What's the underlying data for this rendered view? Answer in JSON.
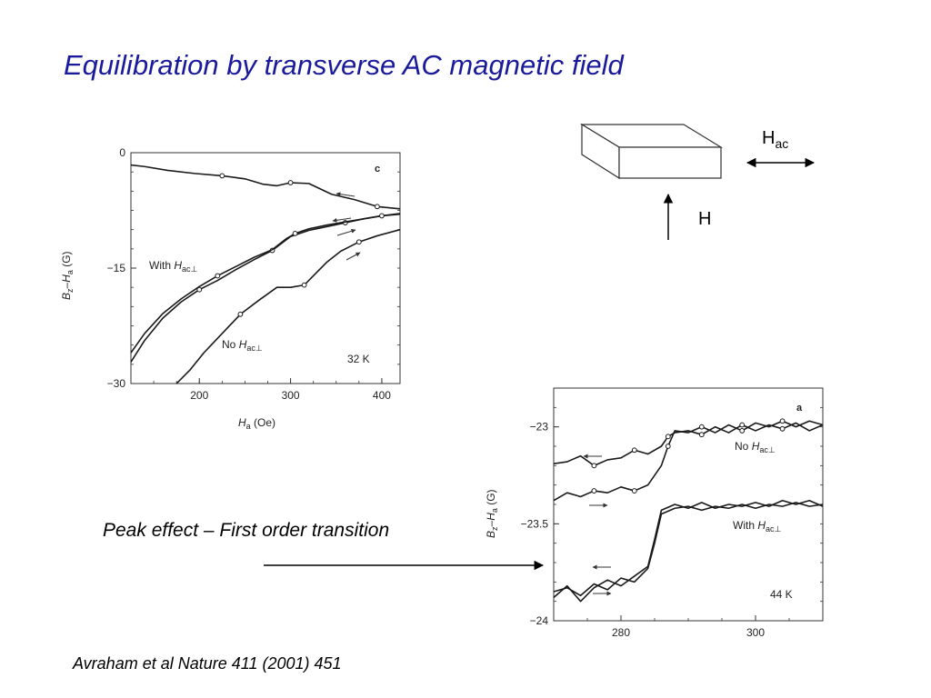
{
  "slide": {
    "title": "Equilibration by transverse AC magnetic field",
    "caption": "Peak effect – First order transition",
    "reference": "Avraham et al Nature 411 (2001) 451"
  },
  "schematic": {
    "hac_main": "H",
    "hac_sub": "ac",
    "h_label": "H"
  },
  "chart_data": [
    {
      "type": "line",
      "panel_label": "c",
      "temperature_label": "32 K",
      "xlabel_main": "H",
      "xlabel_sub": "a",
      "xlabel_unit": " (Oe)",
      "ylabel": "Bz–Ha (G)",
      "ylabel_parts": {
        "b": "B",
        "b_sub": "z",
        "dash": "–",
        "h": "H",
        "h_sub": "a",
        "unit": " (G)"
      },
      "xlim": [
        125,
        420
      ],
      "ylim": [
        -30,
        0
      ],
      "xticks": [
        "200",
        "300",
        "400"
      ],
      "yticks": [
        "0",
        "−15",
        "−30"
      ],
      "annotations": {
        "with_prefix": "With ",
        "no_prefix": "No ",
        "h": "H",
        "h_sub": "ac⊥"
      },
      "series": [
        {
          "x": [
            125,
            140,
            165,
            195,
            225,
            250,
            270,
            285,
            300,
            320,
            345,
            370,
            395,
            420
          ],
          "y": [
            -1.6,
            -1.8,
            -2.3,
            -2.7,
            -3.0,
            -3.4,
            -4.1,
            -4.3,
            -3.9,
            -4.0,
            -5.4,
            -6.1,
            -7.0,
            -7.3
          ]
        },
        {
          "x": [
            125,
            140,
            160,
            180,
            200,
            220,
            240,
            260,
            280,
            300,
            320,
            340,
            360,
            380,
            400,
            420
          ],
          "y": [
            -27.2,
            -24.4,
            -21.5,
            -19.4,
            -17.8,
            -16.6,
            -15.2,
            -13.9,
            -12.7,
            -10.9,
            -10.1,
            -9.6,
            -9.1,
            -8.6,
            -8.2,
            -8.0
          ]
        },
        {
          "x": [
            125,
            140,
            160,
            180,
            200,
            220,
            240,
            260,
            280,
            295,
            305,
            320,
            340,
            360,
            380,
            400,
            420
          ],
          "y": [
            -26.0,
            -23.5,
            -20.9,
            -19.0,
            -17.4,
            -16.0,
            -14.8,
            -13.6,
            -12.6,
            -11.2,
            -10.5,
            -9.9,
            -9.4,
            -9.0,
            -8.6,
            -8.2,
            -7.9
          ]
        },
        {
          "x": [
            175,
            190,
            205,
            225,
            245,
            265,
            285,
            300,
            315,
            325,
            340,
            355,
            375,
            395,
            420
          ],
          "y": [
            -30,
            -28.2,
            -26.0,
            -23.5,
            -21.0,
            -19.2,
            -17.5,
            -17.5,
            -17.2,
            -16.0,
            -14.2,
            -12.8,
            -11.6,
            -10.8,
            -10.0
          ]
        }
      ]
    },
    {
      "type": "line",
      "panel_label": "a",
      "temperature_label": "44 K",
      "ylabel": "Bz–Ha (G)",
      "ylabel_parts": {
        "b": "B",
        "b_sub": "z",
        "dash": "–",
        "h": "H",
        "h_sub": "a",
        "unit": " (G)"
      },
      "xlim": [
        270,
        310
      ],
      "ylim": [
        -24,
        -22.8
      ],
      "xticks": [
        "280",
        "300"
      ],
      "yticks": [
        "−23",
        "−23.5",
        "−24"
      ],
      "annotations": {
        "with_prefix": "With ",
        "no_prefix": "No ",
        "h": "H",
        "h_sub": "ac⊥"
      },
      "series": [
        {
          "x": [
            270,
            272,
            274,
            276,
            278,
            280,
            282,
            284,
            286,
            287,
            288,
            290,
            292,
            294,
            296,
            298,
            300,
            302,
            304,
            306,
            308,
            310
          ],
          "y": [
            -23.19,
            -23.18,
            -23.15,
            -23.2,
            -23.17,
            -23.16,
            -23.12,
            -23.14,
            -23.1,
            -23.05,
            -23.03,
            -23.02,
            -23.04,
            -23.0,
            -23.03,
            -22.99,
            -23.02,
            -22.99,
            -23.01,
            -22.98,
            -23.02,
            -22.99
          ]
        },
        {
          "x": [
            270,
            272,
            274,
            276,
            278,
            280,
            282,
            284,
            286,
            287,
            288,
            290,
            292,
            294,
            296,
            298,
            300,
            302,
            304,
            306,
            308,
            310
          ],
          "y": [
            -23.38,
            -23.34,
            -23.36,
            -23.33,
            -23.34,
            -23.31,
            -23.33,
            -23.3,
            -23.2,
            -23.1,
            -23.02,
            -23.03,
            -23.0,
            -23.03,
            -22.99,
            -23.02,
            -22.98,
            -23.0,
            -22.97,
            -23.0,
            -22.97,
            -22.99
          ]
        },
        {
          "x": [
            270,
            272,
            274,
            276,
            278,
            280,
            282,
            284,
            285,
            286,
            288,
            290,
            292,
            294,
            296,
            298,
            300,
            302,
            304,
            306,
            308,
            310
          ],
          "y": [
            -23.85,
            -23.83,
            -23.87,
            -23.81,
            -23.84,
            -23.78,
            -23.8,
            -23.73,
            -23.6,
            -23.45,
            -23.42,
            -23.41,
            -23.43,
            -23.41,
            -23.42,
            -23.4,
            -23.42,
            -23.4,
            -23.41,
            -23.39,
            -23.41,
            -23.4
          ]
        },
        {
          "x": [
            270,
            272,
            274,
            276,
            278,
            280,
            282,
            284,
            285,
            286,
            288,
            290,
            292,
            294,
            296,
            298,
            300,
            302,
            304,
            306,
            308,
            310
          ],
          "y": [
            -23.88,
            -23.82,
            -23.9,
            -23.83,
            -23.79,
            -23.82,
            -23.77,
            -23.72,
            -23.58,
            -23.43,
            -23.4,
            -23.42,
            -23.39,
            -23.42,
            -23.4,
            -23.41,
            -23.39,
            -23.41,
            -23.38,
            -23.4,
            -23.38,
            -23.41
          ]
        }
      ]
    }
  ]
}
